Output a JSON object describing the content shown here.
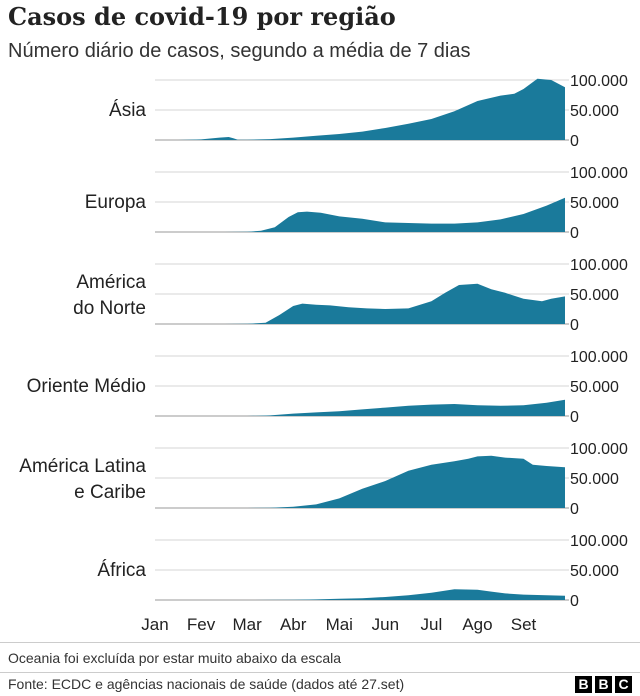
{
  "title": "Casos de covid-19 por região",
  "subtitle": "Número diário de casos, segundo a média de 7 dias",
  "footnote": "Oceania foi excluída por estar muito abaixo da escala",
  "source": "Fonte: ECDC e agências nacionais de saúde (dados até 27.set)",
  "logo": [
    "B",
    "B",
    "C"
  ],
  "colors": {
    "area": "#1a7a9b",
    "grid": "#d6d6d6",
    "text": "#222222"
  },
  "chart_data": {
    "type": "area",
    "title": "Casos de covid-19 por região",
    "ylim": [
      0,
      100000
    ],
    "yticks": [
      {
        "value": 0,
        "label": "0"
      },
      {
        "value": 50000,
        "label": "50.000"
      },
      {
        "value": 100000,
        "label": "100.000"
      }
    ],
    "xticks": [
      "Jan",
      "Fev",
      "Mar",
      "Abr",
      "Mai",
      "Jun",
      "Jul",
      "Ago",
      "Set"
    ],
    "x_unit": "month index (0 = Jan 1, 8.9 = 27 Set)",
    "series": [
      {
        "name": "Ásia",
        "label_lines": [
          "Ásia"
        ],
        "x": [
          0,
          0.5,
          1.0,
          1.4,
          1.6,
          1.7,
          1.8,
          2.0,
          2.5,
          3.0,
          3.5,
          4.0,
          4.5,
          5.0,
          5.5,
          6.0,
          6.5,
          7.0,
          7.5,
          7.8,
          8.0,
          8.3,
          8.6,
          8.9
        ],
        "values": [
          0,
          0,
          1000,
          4000,
          5000,
          3000,
          500,
          500,
          1500,
          4000,
          7000,
          10000,
          14000,
          20000,
          27000,
          35000,
          48000,
          65000,
          74000,
          77000,
          85000,
          102000,
          100000,
          88000
        ]
      },
      {
        "name": "Europa",
        "label_lines": [
          "Europa"
        ],
        "x": [
          0,
          1.5,
          2.0,
          2.3,
          2.6,
          2.9,
          3.1,
          3.3,
          3.6,
          4.0,
          4.5,
          5.0,
          5.5,
          6.0,
          6.5,
          7.0,
          7.5,
          8.0,
          8.5,
          8.9
        ],
        "values": [
          0,
          0,
          500,
          2000,
          8000,
          25000,
          33000,
          34000,
          32000,
          26000,
          22000,
          16000,
          15000,
          14000,
          14000,
          16000,
          21000,
          30000,
          44000,
          57000
        ]
      },
      {
        "name": "América do Norte",
        "label_lines": [
          "América",
          "do Norte"
        ],
        "x": [
          0,
          1.5,
          2.0,
          2.4,
          2.7,
          3.0,
          3.2,
          3.5,
          3.8,
          4.2,
          4.6,
          5.0,
          5.5,
          6.0,
          6.3,
          6.6,
          7.0,
          7.3,
          7.6,
          8.0,
          8.4,
          8.6,
          8.9
        ],
        "values": [
          0,
          0,
          500,
          2000,
          15000,
          30000,
          34000,
          32000,
          31000,
          28000,
          26000,
          25000,
          26000,
          38000,
          52000,
          65000,
          67000,
          58000,
          52000,
          42000,
          38000,
          42000,
          46000
        ]
      },
      {
        "name": "Oriente Médio",
        "label_lines": [
          "Oriente Médio"
        ],
        "x": [
          0,
          2.0,
          2.5,
          3.0,
          3.5,
          4.0,
          4.5,
          5.0,
          5.5,
          6.0,
          6.5,
          7.0,
          7.5,
          8.0,
          8.5,
          8.9
        ],
        "values": [
          0,
          0,
          1000,
          4000,
          6000,
          8000,
          11000,
          14000,
          17000,
          19000,
          20000,
          18000,
          17000,
          18000,
          22000,
          27000
        ]
      },
      {
        "name": "América Latina e Caribe",
        "label_lines": [
          "América Latina",
          "e Caribe"
        ],
        "x": [
          0,
          2.0,
          2.5,
          3.0,
          3.5,
          4.0,
          4.5,
          5.0,
          5.5,
          6.0,
          6.5,
          6.8,
          7.0,
          7.3,
          7.6,
          8.0,
          8.2,
          8.5,
          8.9
        ],
        "values": [
          0,
          0,
          500,
          2000,
          6000,
          16000,
          32000,
          45000,
          62000,
          72000,
          78000,
          82000,
          86000,
          87000,
          84000,
          82000,
          72000,
          70000,
          68000
        ]
      },
      {
        "name": "África",
        "label_lines": [
          "África"
        ],
        "x": [
          0,
          2.0,
          2.5,
          3.0,
          3.5,
          4.0,
          4.5,
          5.0,
          5.5,
          6.0,
          6.5,
          7.0,
          7.3,
          7.6,
          8.0,
          8.5,
          8.9
        ],
        "values": [
          0,
          0,
          100,
          500,
          1000,
          2000,
          3000,
          5000,
          8000,
          12000,
          18000,
          17000,
          14000,
          11000,
          9000,
          8000,
          7000
        ]
      }
    ]
  }
}
